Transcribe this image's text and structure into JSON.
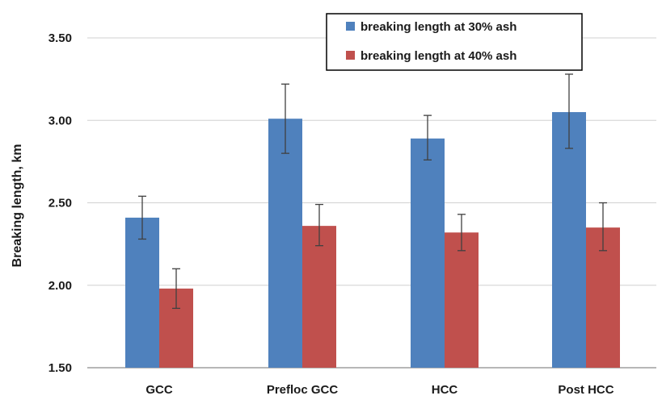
{
  "chart_data": {
    "type": "bar",
    "title": "",
    "xlabel": "",
    "ylabel": "Breaking length, km",
    "ylim": [
      1.5,
      3.5
    ],
    "yticks": [
      1.5,
      2.0,
      2.5,
      3.0,
      3.5
    ],
    "ytick_labels": [
      "1.50",
      "2.00",
      "2.50",
      "3.00",
      "3.50"
    ],
    "grid": true,
    "legend_position": "top-right",
    "categories": [
      "GCC",
      "Prefloc GCC",
      "HCC",
      "Post HCC"
    ],
    "series": [
      {
        "name": "breaking length at 30% ash",
        "color": "#4F81BD",
        "values": [
          2.41,
          3.01,
          2.89,
          3.05
        ],
        "err_low": [
          2.28,
          2.8,
          2.76,
          2.83
        ],
        "err_high": [
          2.54,
          3.22,
          3.03,
          3.28
        ]
      },
      {
        "name": "breaking length at 40% ash",
        "color": "#C0504D",
        "values": [
          1.98,
          2.36,
          2.32,
          2.35
        ],
        "err_low": [
          1.86,
          2.24,
          2.21,
          2.21
        ],
        "err_high": [
          2.1,
          2.49,
          2.43,
          2.5
        ]
      }
    ]
  }
}
